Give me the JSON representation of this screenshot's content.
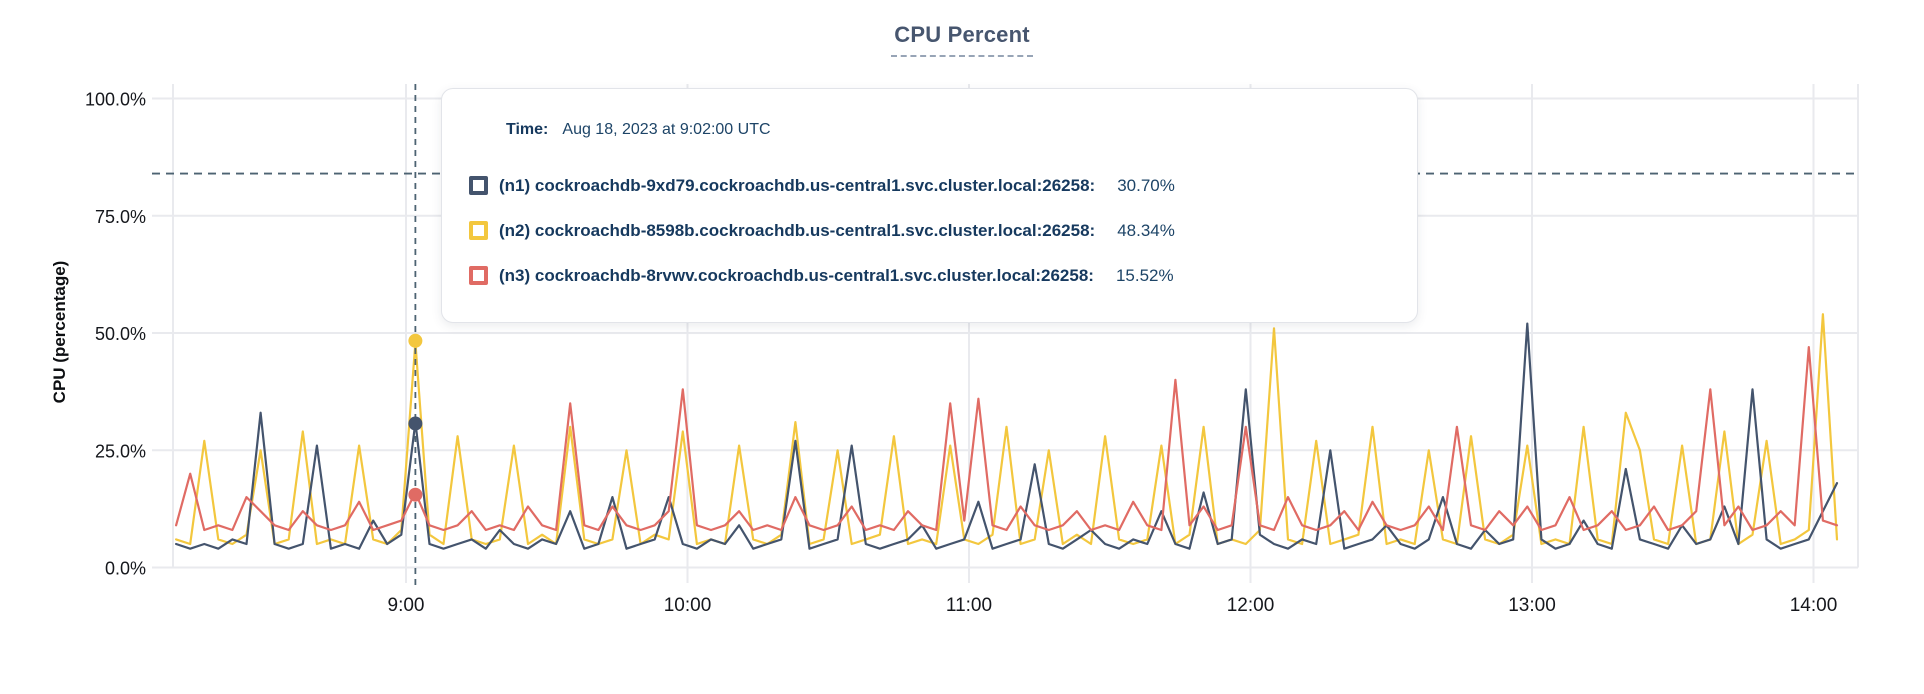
{
  "title": "CPU Percent",
  "tooltip": {
    "time_label": "Time:",
    "time_value": "Aug 18, 2023 at 9:02:00 UTC",
    "rows": [
      {
        "series": "n1",
        "label": "(n1) cockroachdb-9xd79.cockroachdb.us-central1.svc.cluster.local:26258:",
        "value": "30.70%",
        "color": "#44546d"
      },
      {
        "series": "n2",
        "label": "(n2) cockroachdb-8598b.cockroachdb.us-central1.svc.cluster.local:26258:",
        "value": "48.34%",
        "color": "#f3c73e"
      },
      {
        "series": "n3",
        "label": "(n3) cockroachdb-8rvwv.cockroachdb.us-central1.svc.cluster.local:26258:",
        "value": "15.52%",
        "color": "#e06b64"
      }
    ]
  },
  "chart_data": {
    "type": "line",
    "title": "CPU Percent",
    "ylabel": "CPU (percentage)",
    "ylim": [
      0,
      100
    ],
    "grid": true,
    "legend_position": "tooltip",
    "threshold_percent": 84,
    "y_ticks": [
      {
        "value": 0,
        "label": "0.0%"
      },
      {
        "value": 25,
        "label": "25.0%"
      },
      {
        "value": 50,
        "label": "50.0%"
      },
      {
        "value": 75,
        "label": "75.0%"
      },
      {
        "value": 100,
        "label": "100.0%"
      }
    ],
    "x_ticks": [
      {
        "minutes": 540,
        "label": "9:00"
      },
      {
        "minutes": 600,
        "label": "10:00"
      },
      {
        "minutes": 660,
        "label": "11:00"
      },
      {
        "minutes": 720,
        "label": "12:00"
      },
      {
        "minutes": 780,
        "label": "13:00"
      },
      {
        "minutes": 840,
        "label": "14:00"
      }
    ],
    "x_unit": "minutes since midnight UTC (Aug 18, 2023)",
    "x_start": 491,
    "x_step": 3,
    "hover": {
      "minutes": 542,
      "time": "Aug 18, 2023 at 9:02:00 UTC",
      "points": [
        {
          "series": "n2",
          "value": 48.34
        },
        {
          "series": "n1",
          "value": 30.7
        },
        {
          "series": "n3",
          "value": 15.52
        }
      ]
    },
    "series": [
      {
        "name": "n2",
        "host": "cockroachdb-8598b.cockroachdb.us-central1.svc.cluster.local:26258",
        "color": "#f3c73e",
        "values": [
          6,
          5,
          27,
          6,
          5,
          7,
          25,
          5,
          6,
          29,
          5,
          6,
          5,
          26,
          6,
          5,
          8,
          48,
          7,
          5,
          28,
          6,
          5,
          6,
          26,
          5,
          7,
          5,
          30,
          6,
          5,
          6,
          25,
          5,
          7,
          6,
          29,
          5,
          6,
          5,
          26,
          6,
          5,
          7,
          31,
          5,
          6,
          25,
          5,
          6,
          7,
          28,
          5,
          6,
          5,
          26,
          6,
          5,
          7,
          30,
          5,
          6,
          25,
          5,
          7,
          5,
          28,
          6,
          5,
          6,
          26,
          5,
          7,
          30,
          5,
          6,
          5,
          8,
          51,
          6,
          5,
          27,
          5,
          6,
          7,
          30,
          5,
          6,
          5,
          25,
          6,
          5,
          28,
          6,
          5,
          7,
          26,
          5,
          6,
          5,
          30,
          6,
          5,
          33,
          25,
          6,
          5,
          26,
          5,
          6,
          29,
          5,
          7,
          27,
          5,
          6,
          8,
          54,
          6
        ]
      },
      {
        "name": "n1",
        "host": "cockroachdb-9xd79.cockroachdb.us-central1.svc.cluster.local:26258",
        "color": "#44546d",
        "values": [
          5,
          4,
          5,
          4,
          6,
          5,
          33,
          5,
          4,
          5,
          26,
          4,
          5,
          4,
          10,
          5,
          7,
          31,
          5,
          4,
          5,
          6,
          4,
          8,
          5,
          4,
          6,
          5,
          12,
          4,
          5,
          15,
          4,
          5,
          6,
          15,
          5,
          4,
          6,
          5,
          9,
          4,
          5,
          6,
          27,
          4,
          5,
          6,
          26,
          5,
          4,
          5,
          6,
          9,
          4,
          5,
          6,
          14,
          4,
          5,
          6,
          22,
          5,
          4,
          6,
          8,
          5,
          4,
          6,
          5,
          12,
          5,
          4,
          16,
          5,
          6,
          38,
          7,
          5,
          4,
          6,
          5,
          25,
          4,
          5,
          6,
          9,
          5,
          4,
          6,
          15,
          5,
          4,
          8,
          5,
          6,
          52,
          6,
          4,
          5,
          10,
          5,
          4,
          21,
          6,
          5,
          4,
          9,
          5,
          6,
          13,
          5,
          38,
          6,
          4,
          5,
          6,
          12,
          18
        ]
      },
      {
        "name": "n3",
        "host": "cockroachdb-8rvwv.cockroachdb.us-central1.svc.cluster.local:26258",
        "color": "#e06b64",
        "values": [
          9,
          20,
          8,
          9,
          8,
          15,
          12,
          9,
          8,
          12,
          9,
          8,
          9,
          14,
          8,
          9,
          10,
          16,
          9,
          8,
          9,
          12,
          8,
          9,
          8,
          13,
          9,
          8,
          35,
          9,
          8,
          13,
          9,
          8,
          9,
          12,
          38,
          9,
          8,
          9,
          12,
          8,
          9,
          8,
          15,
          9,
          8,
          9,
          13,
          8,
          9,
          8,
          12,
          9,
          8,
          35,
          10,
          36,
          9,
          8,
          13,
          9,
          8,
          9,
          12,
          8,
          9,
          8,
          14,
          9,
          8,
          40,
          9,
          13,
          8,
          9,
          30,
          9,
          8,
          15,
          9,
          8,
          9,
          12,
          8,
          14,
          9,
          8,
          9,
          13,
          8,
          30,
          9,
          8,
          12,
          9,
          13,
          8,
          9,
          15,
          8,
          9,
          12,
          8,
          9,
          13,
          8,
          9,
          12,
          38,
          9,
          13,
          8,
          9,
          12,
          9,
          47,
          10,
          9
        ]
      }
    ]
  }
}
